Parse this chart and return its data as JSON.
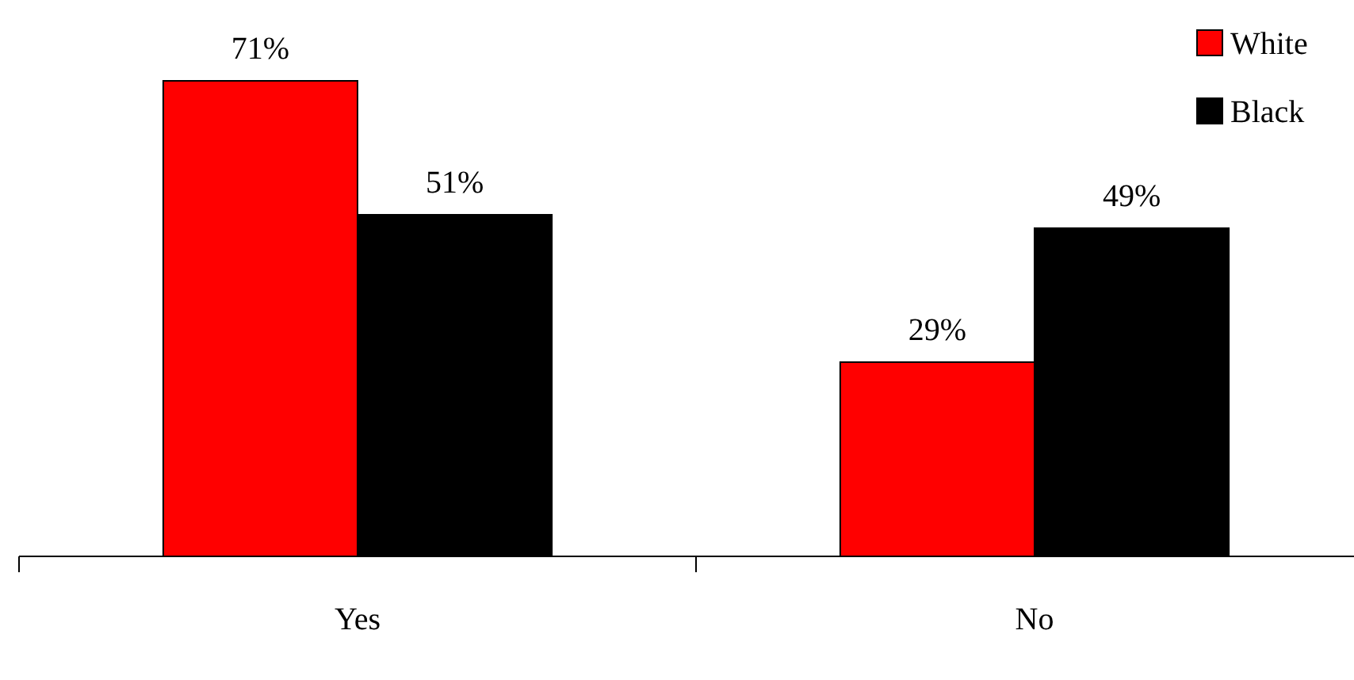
{
  "chart_data": {
    "type": "bar",
    "categories": [
      "Yes",
      "No"
    ],
    "series": [
      {
        "name": "White",
        "color": "#ff0000",
        "values": [
          71,
          29
        ],
        "value_labels": [
          "71%",
          "29%"
        ]
      },
      {
        "name": "Black",
        "color": "#000000",
        "values": [
          51,
          49
        ],
        "value_labels": [
          "51%",
          "49%"
        ]
      }
    ],
    "legend": "top right"
  }
}
